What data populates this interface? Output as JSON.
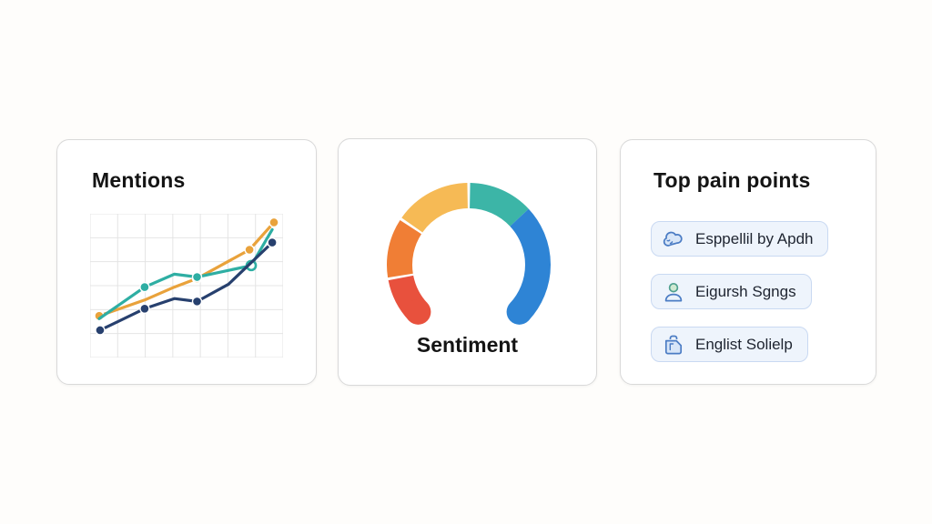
{
  "page": {
    "background": "#FEFDFB",
    "card_border": "#D9D9D9"
  },
  "cards": {
    "mentions": {
      "title": "Mentions"
    },
    "sentiment": {
      "label": "Sentiment"
    },
    "pain_points": {
      "title": "Top pain points",
      "items": [
        {
          "icon": "thought-cloud-icon",
          "label": "Esppellil by Apdh"
        },
        {
          "icon": "user-icon",
          "label": "Eigursh Sgngs"
        },
        {
          "icon": "bag-icon",
          "label": "Englist Solielp"
        }
      ],
      "chip_bg": "#EEF4FC",
      "chip_border": "#C9D9F2",
      "icon_stroke": "#4B7CC4",
      "icon_fill": "#D8E6F8"
    }
  },
  "chart_data": [
    {
      "type": "line",
      "title": "Mentions",
      "xlabel": "",
      "ylabel": "",
      "xlim": [
        0,
        10
      ],
      "ylim": [
        0,
        10
      ],
      "grid": true,
      "legend": "none",
      "tick_labels": "none",
      "series": [
        {
          "name": "orange",
          "color": "#E9A23B",
          "points": [
            [
              0.0,
              2.9
            ],
            [
              2.6,
              4.0
            ],
            [
              4.3,
              4.9
            ],
            [
              5.6,
              5.5
            ],
            [
              8.6,
              7.5
            ],
            [
              10.0,
              9.4
            ]
          ],
          "markers": [
            0,
            3,
            4,
            5
          ],
          "open_markers": []
        },
        {
          "name": "teal",
          "color": "#2EAEA3",
          "points": [
            [
              0.0,
              2.7
            ],
            [
              2.6,
              4.9
            ],
            [
              4.3,
              5.8
            ],
            [
              5.6,
              5.6
            ],
            [
              8.7,
              6.4
            ],
            [
              9.9,
              8.9
            ]
          ],
          "markers": [
            1,
            3,
            4
          ],
          "open_markers": [
            4
          ]
        },
        {
          "name": "navy",
          "color": "#27406E",
          "points": [
            [
              0.05,
              1.9
            ],
            [
              2.6,
              3.4
            ],
            [
              4.3,
              4.1
            ],
            [
              5.6,
              3.9
            ],
            [
              7.4,
              5.1
            ],
            [
              9.9,
              8.0
            ]
          ],
          "markers": [
            0,
            1,
            3,
            5
          ],
          "open_markers": []
        }
      ]
    },
    {
      "type": "gauge",
      "title": "Sentiment",
      "arc_span_deg": [
        -133,
        133
      ],
      "rounded_ends": true,
      "segments": [
        {
          "name": "negative",
          "color": "#E8513D",
          "start": -133,
          "end": -101
        },
        {
          "name": "somewhat-neg",
          "color": "#F07E35",
          "start": -99,
          "end": -57
        },
        {
          "name": "neutral",
          "color": "#F6BA55",
          "start": -55,
          "end": -1
        },
        {
          "name": "somewhat-pos",
          "color": "#3CB5A7",
          "start": 1,
          "end": 47
        },
        {
          "name": "positive",
          "color": "#2E84D5",
          "start": 47,
          "end": 133
        }
      ]
    }
  ]
}
